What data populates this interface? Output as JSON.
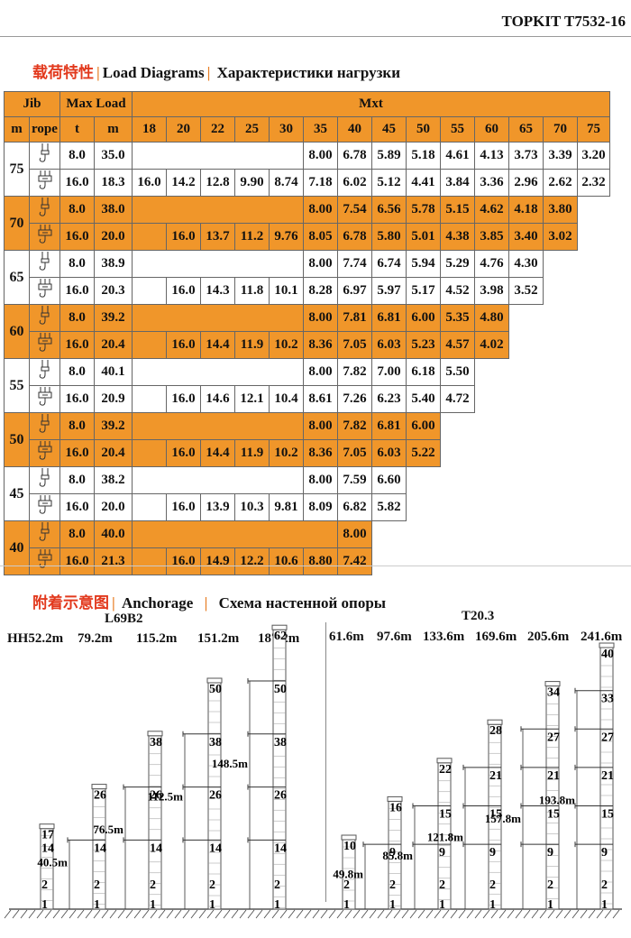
{
  "doc_code": "TOPKIT T7532-16",
  "load_section": {
    "cn": "载荷特性",
    "en": "Load Diagrams",
    "ru": "Характеристики нагрузки",
    "col_jib": "Jib",
    "col_maxload": "Max Load",
    "col_mxt": "Mxt",
    "sub_m": "m",
    "sub_rope": "rope",
    "sub_t": "t",
    "sub_m2": "m",
    "radii": [
      "18",
      "20",
      "22",
      "25",
      "30",
      "35",
      "40",
      "45",
      "50",
      "55",
      "60",
      "65",
      "70",
      "75"
    ]
  },
  "load_rows": [
    {
      "jib": "75",
      "orange": false,
      "r1": {
        "t": "8.0",
        "m": "35.0",
        "vals": [
          "",
          "",
          "",
          "",
          "",
          "8.00",
          "6.78",
          "5.89",
          "5.18",
          "4.61",
          "4.13",
          "3.73",
          "3.39",
          "3.20"
        ]
      },
      "r2": {
        "t": "16.0",
        "m": "18.3",
        "vals": [
          "16.0",
          "14.2",
          "12.8",
          "9.90",
          "8.74",
          "7.18",
          "6.02",
          "5.12",
          "4.41",
          "3.84",
          "3.36",
          "2.96",
          "2.62",
          "2.32"
        ]
      }
    },
    {
      "jib": "70",
      "orange": true,
      "r1": {
        "t": "8.0",
        "m": "38.0",
        "vals": [
          "",
          "",
          "",
          "",
          "",
          "8.00",
          "7.54",
          "6.56",
          "5.78",
          "5.15",
          "4.62",
          "4.18",
          "3.80",
          null
        ]
      },
      "r2": {
        "t": "16.0",
        "m": "20.0",
        "vals": [
          "",
          "16.0",
          "13.7",
          "11.2",
          "9.76",
          "8.05",
          "6.78",
          "5.80",
          "5.01",
          "4.38",
          "3.85",
          "3.40",
          "3.02",
          null
        ]
      }
    },
    {
      "jib": "65",
      "orange": false,
      "r1": {
        "t": "8.0",
        "m": "38.9",
        "vals": [
          "",
          "",
          "",
          "",
          "",
          "8.00",
          "7.74",
          "6.74",
          "5.94",
          "5.29",
          "4.76",
          "4.30",
          null,
          null
        ]
      },
      "r2": {
        "t": "16.0",
        "m": "20.3",
        "vals": [
          "",
          "16.0",
          "14.3",
          "11.8",
          "10.1",
          "8.28",
          "6.97",
          "5.97",
          "5.17",
          "4.52",
          "3.98",
          "3.52",
          null,
          null
        ]
      }
    },
    {
      "jib": "60",
      "orange": true,
      "r1": {
        "t": "8.0",
        "m": "39.2",
        "vals": [
          "",
          "",
          "",
          "",
          "",
          "8.00",
          "7.81",
          "6.81",
          "6.00",
          "5.35",
          "4.80",
          null,
          null,
          null
        ]
      },
      "r2": {
        "t": "16.0",
        "m": "20.4",
        "vals": [
          "",
          "16.0",
          "14.4",
          "11.9",
          "10.2",
          "8.36",
          "7.05",
          "6.03",
          "5.23",
          "4.57",
          "4.02",
          null,
          null,
          null
        ]
      }
    },
    {
      "jib": "55",
      "orange": false,
      "r1": {
        "t": "8.0",
        "m": "40.1",
        "vals": [
          "",
          "",
          "",
          "",
          "",
          "8.00",
          "7.82",
          "7.00",
          "6.18",
          "5.50",
          null,
          null,
          null,
          null
        ]
      },
      "r2": {
        "t": "16.0",
        "m": "20.9",
        "vals": [
          "",
          "16.0",
          "14.6",
          "12.1",
          "10.4",
          "8.61",
          "7.26",
          "6.23",
          "5.40",
          "4.72",
          null,
          null,
          null,
          null
        ]
      }
    },
    {
      "jib": "50",
      "orange": true,
      "r1": {
        "t": "8.0",
        "m": "39.2",
        "vals": [
          "",
          "",
          "",
          "",
          "",
          "8.00",
          "7.82",
          "6.81",
          "6.00",
          null,
          null,
          null,
          null,
          null
        ]
      },
      "r2": {
        "t": "16.0",
        "m": "20.4",
        "vals": [
          "",
          "16.0",
          "14.4",
          "11.9",
          "10.2",
          "8.36",
          "7.05",
          "6.03",
          "5.22",
          null,
          null,
          null,
          null,
          null
        ]
      }
    },
    {
      "jib": "45",
      "orange": false,
      "r1": {
        "t": "8.0",
        "m": "38.2",
        "vals": [
          "",
          "",
          "",
          "",
          "",
          "8.00",
          "7.59",
          "6.60",
          null,
          null,
          null,
          null,
          null,
          null
        ]
      },
      "r2": {
        "t": "16.0",
        "m": "20.0",
        "vals": [
          "",
          "16.0",
          "13.9",
          "10.3",
          "9.81",
          "8.09",
          "6.82",
          "5.82",
          null,
          null,
          null,
          null,
          null,
          null
        ]
      }
    },
    {
      "jib": "40",
      "orange": true,
      "r1": {
        "t": "8.0",
        "m": "40.0",
        "vals": [
          "",
          "",
          "",
          "",
          "",
          "",
          "8.00",
          null,
          null,
          null,
          null,
          null,
          null,
          null
        ]
      },
      "r2": {
        "t": "16.0",
        "m": "21.3",
        "vals": [
          "",
          "16.0",
          "14.9",
          "12.2",
          "10.6",
          "8.80",
          "7.42",
          null,
          null,
          null,
          null,
          null,
          null,
          null
        ]
      }
    }
  ],
  "anchor_section": {
    "cn": "附着示意图",
    "en": "Anchorage",
    "ru": "Схема настенной опоры",
    "left_model": "L69B2",
    "right_model": "T20.3",
    "left_heights": [
      "HH52.2m",
      "79.2m",
      "115.2m",
      "151.2m",
      "187.2m"
    ],
    "right_heights": [
      "61.6m",
      "97.6m",
      "133.6m",
      "169.6m",
      "205.6m",
      "241.6m"
    ]
  },
  "towers": [
    {
      "side": "L",
      "top": "17",
      "marks": [
        "1",
        "2",
        "14",
        "17"
      ],
      "anch": [],
      "dim": ""
    },
    {
      "side": "L",
      "top": "26",
      "marks": [
        "1",
        "2",
        "14",
        "26"
      ],
      "anch": [
        "14"
      ],
      "dim": "40.5m"
    },
    {
      "side": "L",
      "top": "38",
      "marks": [
        "1",
        "2",
        "14",
        "26",
        "38"
      ],
      "anch": [
        "14",
        "26"
      ],
      "dim": "76.5m"
    },
    {
      "side": "L",
      "top": "50",
      "marks": [
        "1",
        "2",
        "14",
        "26",
        "38",
        "50"
      ],
      "anch": [
        "14",
        "26",
        "38"
      ],
      "dim": "112.5m"
    },
    {
      "side": "L",
      "top": "62",
      "marks": [
        "1",
        "2",
        "14",
        "26",
        "38",
        "50",
        "62"
      ],
      "anch": [
        "14",
        "26",
        "38",
        "50"
      ],
      "dim": "148.5m"
    },
    {
      "side": "R",
      "top": "10",
      "marks": [
        "1",
        "2",
        "10"
      ],
      "anch": [],
      "dim": ""
    },
    {
      "side": "R",
      "top": "16",
      "marks": [
        "1",
        "2",
        "9",
        "16"
      ],
      "anch": [
        "9"
      ],
      "dim": "49.8m"
    },
    {
      "side": "R",
      "top": "22",
      "marks": [
        "1",
        "2",
        "9",
        "15",
        "22"
      ],
      "anch": [
        "9",
        "15"
      ],
      "dim": "85.8m"
    },
    {
      "side": "R",
      "top": "28",
      "marks": [
        "1",
        "2",
        "9",
        "15",
        "21",
        "28"
      ],
      "anch": [
        "9",
        "15",
        "21"
      ],
      "dim": "121.8m"
    },
    {
      "side": "R",
      "top": "34",
      "marks": [
        "1",
        "2",
        "9",
        "15",
        "21",
        "27",
        "34"
      ],
      "anch": [
        "9",
        "15",
        "21",
        "27"
      ],
      "dim": "157.8m"
    },
    {
      "side": "R",
      "top": "40",
      "marks": [
        "1",
        "2",
        "9",
        "15",
        "21",
        "27",
        "33",
        "40"
      ],
      "anch": [
        "9",
        "15",
        "21",
        "27",
        "33"
      ],
      "dim": "193.8m"
    }
  ],
  "colors": {
    "orange": "#f0962a",
    "red": "#e2391d",
    "sep": "#e77d24"
  }
}
